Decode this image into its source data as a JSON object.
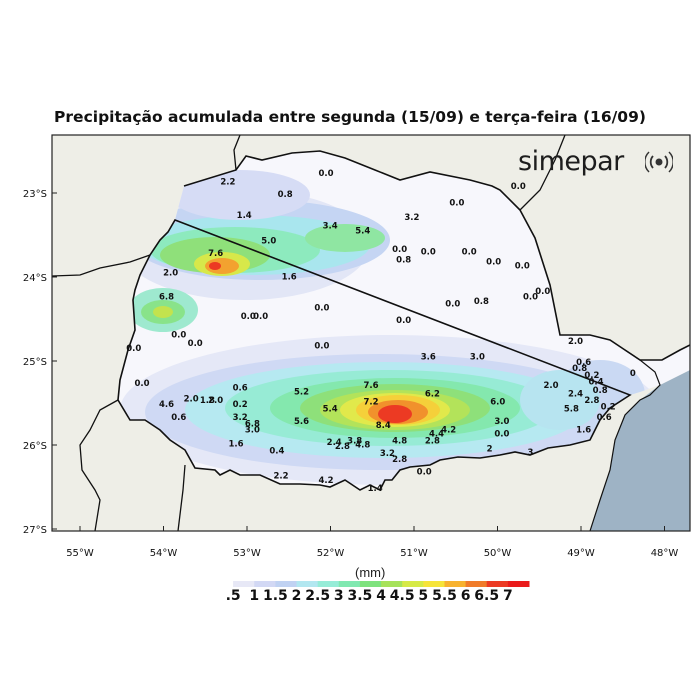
{
  "title": "Precipitação acumulada entre segunda (15/09) e terça-feira (16/09)",
  "brand": {
    "name": "simepar",
    "icon": "signal-waves-icon"
  },
  "colors": {
    "ocean": "#9eb3c5",
    "land": "#eeeee7",
    "state_dry": "#f7f7fc",
    "border": "#111111"
  },
  "y_axis_labels": [
    "23°S",
    "24°S",
    "25°S",
    "26°S",
    "27°S"
  ],
  "x_axis_labels": [
    "55°W",
    "54°W",
    "53°W",
    "52°W",
    "51°W",
    "50°W",
    "49°W",
    "48°W"
  ],
  "legend": {
    "unit": "(mm)",
    "labels": [
      ".5",
      "1",
      "1.5",
      "2",
      "2.5",
      "3",
      "3.5",
      "4",
      "4.5",
      "5",
      "5.5",
      "6",
      "6.5",
      "7"
    ],
    "colors": [
      "#ffffff",
      "#e7e8f6",
      "#d2d8f4",
      "#c0d2f2",
      "#b2e7f0",
      "#96ecd7",
      "#80e8b0",
      "#7ee27d",
      "#a6e25a",
      "#d6ea47",
      "#f6e43a",
      "#f7b22f",
      "#f07b2a",
      "#ec3a23",
      "#ea1b1b"
    ]
  },
  "station_values": [
    {
      "v": "0.0",
      "lon": -52.0,
      "lat": -22.8
    },
    {
      "v": "2.2",
      "lon": -53.2,
      "lat": -22.9
    },
    {
      "v": "0.8",
      "lon": -52.5,
      "lat": -23.05
    },
    {
      "v": "1.4",
      "lon": -53.0,
      "lat": -23.3
    },
    {
      "v": "3.4",
      "lon": -51.95,
      "lat": -23.42
    },
    {
      "v": "5.4",
      "lon": -51.55,
      "lat": -23.48
    },
    {
      "v": "3.2",
      "lon": -50.95,
      "lat": -23.32
    },
    {
      "v": "5.0",
      "lon": -52.7,
      "lat": -23.6
    },
    {
      "v": "7.6",
      "lon": -53.35,
      "lat": -23.75
    },
    {
      "v": "2.0",
      "lon": -53.9,
      "lat": -23.98
    },
    {
      "v": "1.6",
      "lon": -52.45,
      "lat": -24.03
    },
    {
      "v": "0.0",
      "lon": -51.1,
      "lat": -23.7
    },
    {
      "v": "0.8",
      "lon": -51.05,
      "lat": -23.83
    },
    {
      "v": "0.0",
      "lon": -50.75,
      "lat": -23.73
    },
    {
      "v": "0.0",
      "lon": -50.25,
      "lat": -23.73
    },
    {
      "v": "0.0",
      "lon": -49.6,
      "lat": -23.9
    },
    {
      "v": "0.0",
      "lon": -49.35,
      "lat": -24.2
    },
    {
      "v": "0.0",
      "lon": -50.4,
      "lat": -23.15
    },
    {
      "v": "0.0",
      "lon": -49.95,
      "lat": -23.85
    },
    {
      "v": "0.0",
      "lon": -49.65,
      "lat": -22.95
    },
    {
      "v": "6.8",
      "lon": -53.95,
      "lat": -24.27
    },
    {
      "v": "0.0",
      "lon": -52.05,
      "lat": -24.4
    },
    {
      "v": "0.0",
      "lon": -50.45,
      "lat": -24.35
    },
    {
      "v": "0.8",
      "lon": -50.1,
      "lat": -24.32
    },
    {
      "v": "0.0",
      "lon": -49.5,
      "lat": -24.27
    },
    {
      "v": "0.0",
      "lon": -52.95,
      "lat": -24.5
    },
    {
      "v": "0.0",
      "lon": -52.8,
      "lat": -24.5
    },
    {
      "v": "0.0",
      "lon": -51.05,
      "lat": -24.55
    },
    {
      "v": "0.0",
      "lon": -53.8,
      "lat": -24.72
    },
    {
      "v": "0.0",
      "lon": -53.6,
      "lat": -24.82
    },
    {
      "v": "0.0",
      "lon": -54.35,
      "lat": -24.88
    },
    {
      "v": "0.0",
      "lon": -52.05,
      "lat": -24.85
    },
    {
      "v": "3.6",
      "lon": -50.75,
      "lat": -24.98
    },
    {
      "v": "3.0",
      "lon": -50.15,
      "lat": -24.98
    },
    {
      "v": "2.0",
      "lon": -48.95,
      "lat": -24.8
    },
    {
      "v": "0.0",
      "lon": -54.25,
      "lat": -25.3
    },
    {
      "v": "0.6",
      "lon": -53.05,
      "lat": -25.35
    },
    {
      "v": "5.2",
      "lon": -52.3,
      "lat": -25.4
    },
    {
      "v": "7.6",
      "lon": -51.45,
      "lat": -25.32
    },
    {
      "v": "6.2",
      "lon": -50.7,
      "lat": -25.42
    },
    {
      "v": "2.0",
      "lon": -49.25,
      "lat": -25.32
    },
    {
      "v": "2.4",
      "lon": -48.95,
      "lat": -25.42
    },
    {
      "v": "2.0",
      "lon": -53.65,
      "lat": -25.48
    },
    {
      "v": "1.8",
      "lon": -53.45,
      "lat": -25.5
    },
    {
      "v": "2.0",
      "lon": -53.35,
      "lat": -25.5
    },
    {
      "v": "4.6",
      "lon": -53.95,
      "lat": -25.55
    },
    {
      "v": "0.2",
      "lon": -53.05,
      "lat": -25.55
    },
    {
      "v": "7.2",
      "lon": -51.45,
      "lat": -25.52
    },
    {
      "v": "6.0",
      "lon": -49.9,
      "lat": -25.52
    },
    {
      "v": "5.8",
      "lon": -49.0,
      "lat": -25.6
    },
    {
      "v": "5.4",
      "lon": -51.95,
      "lat": -25.6
    },
    {
      "v": "3.2",
      "lon": -53.05,
      "lat": -25.7
    },
    {
      "v": "0.6",
      "lon": -53.8,
      "lat": -25.7
    },
    {
      "v": "3.0",
      "lon": -49.85,
      "lat": -25.75
    },
    {
      "v": "8.4",
      "lon": -51.3,
      "lat": -25.8
    },
    {
      "v": "5.6",
      "lon": -52.3,
      "lat": -25.75
    },
    {
      "v": "6.8",
      "lon": -52.9,
      "lat": -25.78
    },
    {
      "v": "3.0",
      "lon": -52.9,
      "lat": -25.85
    },
    {
      "v": "4.2",
      "lon": -50.5,
      "lat": -25.85
    },
    {
      "v": "4.4",
      "lon": -50.65,
      "lat": -25.9
    },
    {
      "v": "0.0",
      "lon": -49.85,
      "lat": -25.9
    },
    {
      "v": "1.6",
      "lon": -53.1,
      "lat": -26.02
    },
    {
      "v": "2.4",
      "lon": -51.9,
      "lat": -26.0
    },
    {
      "v": "2.8",
      "lon": -51.8,
      "lat": -26.05
    },
    {
      "v": "3.8",
      "lon": -51.65,
      "lat": -25.98
    },
    {
      "v": "4.8",
      "lon": -51.55,
      "lat": -26.03
    },
    {
      "v": "4.8",
      "lon": -51.1,
      "lat": -25.98
    },
    {
      "v": "2.8",
      "lon": -50.7,
      "lat": -25.98
    },
    {
      "v": "0.4",
      "lon": -52.6,
      "lat": -26.1
    },
    {
      "v": "3.2",
      "lon": -51.25,
      "lat": -26.13
    },
    {
      "v": "2.8",
      "lon": -51.1,
      "lat": -26.2
    },
    {
      "v": "2",
      "lon": -50.0,
      "lat": -26.08
    },
    {
      "v": "3",
      "lon": -49.5,
      "lat": -26.12
    },
    {
      "v": "0.0",
      "lon": -50.8,
      "lat": -26.35
    },
    {
      "v": "2.2",
      "lon": -52.55,
      "lat": -26.4
    },
    {
      "v": "4.2",
      "lon": -52.0,
      "lat": -26.45
    },
    {
      "v": "1.4",
      "lon": -51.4,
      "lat": -26.55
    },
    {
      "v": "0.6",
      "lon": -48.85,
      "lat": -25.05
    },
    {
      "v": "0.8",
      "lon": -48.9,
      "lat": -25.12
    },
    {
      "v": "0.2",
      "lon": -48.75,
      "lat": -25.2
    },
    {
      "v": "0.4",
      "lon": -48.7,
      "lat": -25.28
    },
    {
      "v": "0.8",
      "lon": -48.65,
      "lat": -25.38
    },
    {
      "v": "2.8",
      "lon": -48.75,
      "lat": -25.5
    },
    {
      "v": "0.2",
      "lon": -48.55,
      "lat": -25.58
    },
    {
      "v": "0.6",
      "lon": -48.6,
      "lat": -25.7
    },
    {
      "v": "1.6",
      "lon": -48.85,
      "lat": -25.85
    },
    {
      "v": "0",
      "lon": -48.25,
      "lat": -25.18
    }
  ]
}
